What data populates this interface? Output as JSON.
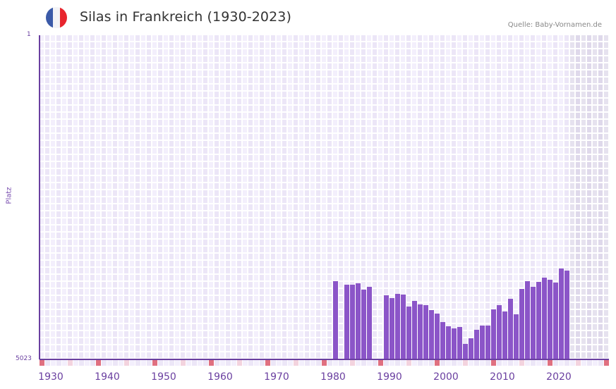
{
  "header": {
    "title": "Silas in Frankreich (1930-2023)",
    "source": "Quelle: Baby-Vornamen.de",
    "flag": {
      "colors": [
        "#3b5aa8",
        "#f3f3f6",
        "#e8252e"
      ]
    }
  },
  "colors": {
    "bar": "#8b55c8",
    "axis": "#6a3fa0",
    "grid_a": "#f3effc",
    "grid_b": "#ece6f7",
    "future_a": "#e6e2ef",
    "future_b": "#dfd9eb",
    "decade_marker": "#e07080",
    "half_decade_marker": "#f3d3de"
  },
  "chart_data": {
    "type": "bar",
    "title": "Silas in Frankreich (1930-2023)",
    "xlabel": "",
    "ylabel": "Platz",
    "y_inverted": true,
    "ylim": [
      1,
      5023
    ],
    "y_tick_labels": [
      "1",
      "5023"
    ],
    "x_tick_labels": [
      "1930",
      "1940",
      "1950",
      "1960",
      "1970",
      "1980",
      "1990",
      "2000",
      "2010",
      "2020"
    ],
    "x_range": [
      1928,
      2028
    ],
    "shaded_future_from": 2022,
    "grid": true,
    "legend": null,
    "x": [
      1980,
      1982,
      1983,
      1984,
      1985,
      1986,
      1989,
      1990,
      1991,
      1992,
      1993,
      1994,
      1995,
      1996,
      1997,
      1998,
      1999,
      2000,
      2001,
      2002,
      2003,
      2004,
      2005,
      2006,
      2007,
      2008,
      2009,
      2010,
      2011,
      2012,
      2013,
      2014,
      2015,
      2016,
      2017,
      2018,
      2019,
      2020,
      2021
    ],
    "values": [
      3808,
      3862,
      3862,
      3841,
      3939,
      3895,
      4026,
      4070,
      4004,
      4015,
      4201,
      4114,
      4168,
      4179,
      4256,
      4310,
      4441,
      4507,
      4540,
      4518,
      4780,
      4693,
      4562,
      4496,
      4496,
      4245,
      4179,
      4278,
      4081,
      4321,
      3928,
      3808,
      3895,
      3819,
      3753,
      3786,
      3830,
      3611,
      3644
    ]
  }
}
